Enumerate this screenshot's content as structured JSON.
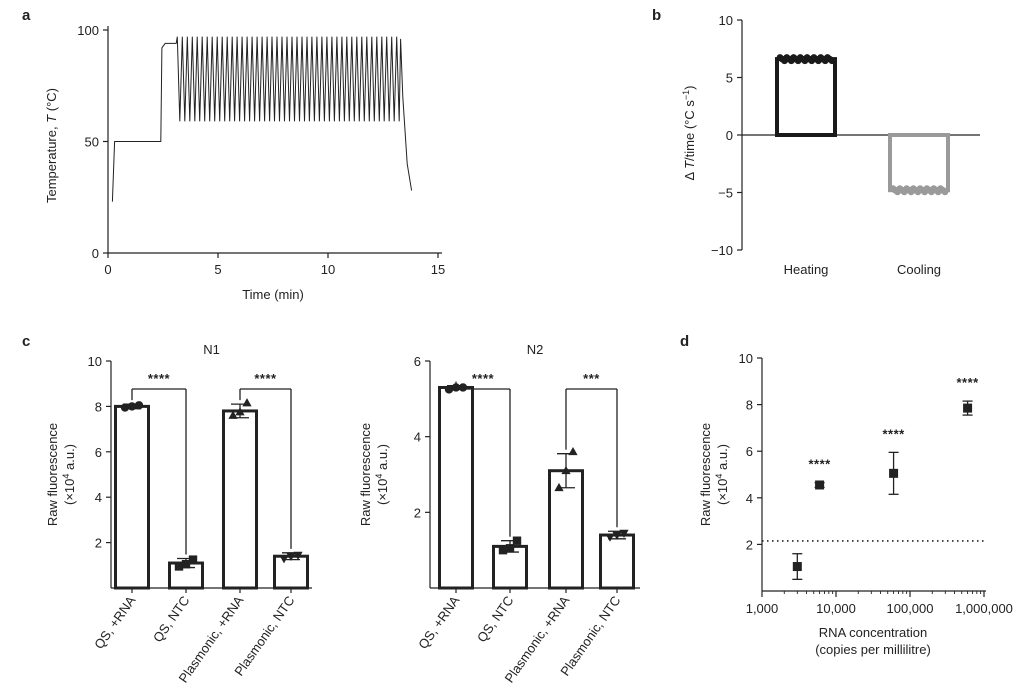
{
  "chart_data": [
    {
      "panel": "a",
      "type": "line",
      "xlabel": "Time (min)",
      "ylabel_parts": [
        "Temperature, ",
        "T",
        " (°C)"
      ],
      "xlim": [
        0,
        15
      ],
      "ylim": [
        0,
        100
      ],
      "xticks": [
        0,
        5,
        10,
        15
      ],
      "yticks": [
        0,
        50,
        100
      ],
      "cycling": {
        "start": 3.1,
        "end": 13.3,
        "cycles": 45,
        "high": 97,
        "low": 59
      },
      "x": [
        0.2,
        0.3,
        0.5,
        1.0,
        2.0,
        2.4,
        2.45,
        2.6,
        3.0,
        3.1,
        13.3,
        13.4,
        13.6,
        13.8
      ],
      "y": [
        23,
        50,
        50,
        50,
        50,
        50,
        92,
        94,
        94,
        94,
        96,
        70,
        40,
        28
      ],
      "grid": false
    },
    {
      "panel": "b",
      "type": "bar",
      "categories": [
        "Heating",
        "Cooling"
      ],
      "values": [
        6.6,
        -4.8
      ],
      "colors": [
        "#1a1a1a",
        "#9a9a9a"
      ],
      "ylabel_parts": [
        "Δ ",
        "T",
        "/time (°C s",
        "−1",
        ")"
      ],
      "ylim": [
        -10,
        10
      ],
      "yticks": [
        -10,
        -5,
        0,
        5,
        10
      ],
      "grid": false
    },
    {
      "panel": "c",
      "type": "bar",
      "title": "N1",
      "categories": [
        "QS, +RNA",
        "QS, NTC",
        "Plasmonic, +RNA",
        "Plasmonic, NTC"
      ],
      "values": [
        8.0,
        1.1,
        7.8,
        1.4
      ],
      "errors": [
        0.1,
        0.2,
        0.3,
        0.15
      ],
      "points": [
        [
          7.95,
          8.0,
          8.05
        ],
        [
          0.95,
          1.05,
          1.25
        ],
        [
          7.6,
          7.75,
          8.15
        ],
        [
          1.3,
          1.4,
          1.45
        ]
      ],
      "markers": [
        "circle",
        "square",
        "triangle",
        "triangle-down"
      ],
      "ylabel_lines": [
        "Raw fluorescence",
        "(×10",
        "4",
        " a.u.)"
      ],
      "ylim": [
        0,
        10
      ],
      "yticks": [
        2,
        4,
        6,
        8,
        10
      ],
      "significance": [
        {
          "from": 0,
          "to": 1,
          "label": "****"
        },
        {
          "from": 2,
          "to": 3,
          "label": "****"
        }
      ]
    },
    {
      "panel": "c",
      "type": "bar",
      "title": "N2",
      "categories": [
        "QS, +RNA",
        "QS, NTC",
        "Plasmonic, +RNA",
        "Plasmonic, NTC"
      ],
      "values": [
        5.3,
        1.1,
        3.1,
        1.4
      ],
      "errors": [
        0.05,
        0.15,
        0.45,
        0.1
      ],
      "points": [
        [
          5.25,
          5.3,
          5.3
        ],
        [
          1.0,
          1.05,
          1.25
        ],
        [
          2.65,
          3.1,
          3.6
        ],
        [
          1.35,
          1.4,
          1.45
        ]
      ],
      "markers": [
        "circle",
        "square",
        "triangle",
        "triangle-down"
      ],
      "ylabel_lines": [
        "Raw fluorescence",
        "(×10",
        "4",
        " a.u.)"
      ],
      "ylim": [
        0,
        6
      ],
      "yticks": [
        2,
        4,
        6
      ],
      "significance": [
        {
          "from": 0,
          "to": 1,
          "label": "****"
        },
        {
          "from": 2,
          "to": 3,
          "label": "***"
        }
      ]
    },
    {
      "panel": "d",
      "type": "scatter",
      "x": [
        3000,
        6000,
        60000,
        600000
      ],
      "y": [
        1.05,
        4.55,
        5.05,
        7.85
      ],
      "errors": [
        0.55,
        0.1,
        0.9,
        0.3
      ],
      "annotations": [
        "",
        "****",
        "****",
        "****"
      ],
      "threshold": 2.15,
      "xscale": "log",
      "xlim": [
        1000,
        1000000
      ],
      "xticks": [
        1000,
        10000,
        100000,
        1000000
      ],
      "xtick_labels": [
        "1,000",
        "10,000",
        "100,000",
        "1,000,000"
      ],
      "ylim": [
        0,
        10
      ],
      "yticks": [
        2,
        4,
        6,
        8,
        10
      ],
      "xlabel_lines": [
        "RNA concentration",
        "(copies per millilitre)"
      ],
      "ylabel_lines": [
        "Raw fluorescence",
        "(×10",
        "4",
        " a.u.)"
      ]
    }
  ],
  "panel_letters": [
    "a",
    "b",
    "c",
    "d"
  ]
}
